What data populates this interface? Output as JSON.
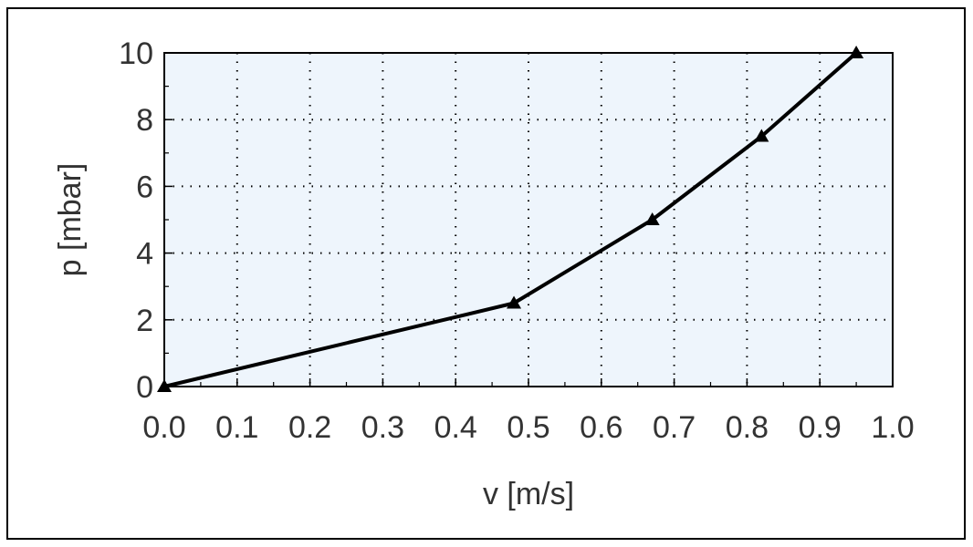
{
  "chart_data": {
    "type": "line",
    "title": "",
    "xlabel": "v [m/s]",
    "ylabel": "p [mbar]",
    "xlim": [
      0.0,
      1.0
    ],
    "ylim": [
      0,
      10
    ],
    "x_ticks": [
      "0.0",
      "0.1",
      "0.2",
      "0.3",
      "0.4",
      "0.5",
      "0.6",
      "0.7",
      "0.8",
      "0.9",
      "1.0"
    ],
    "y_ticks": [
      "0",
      "2",
      "4",
      "6",
      "8",
      "10"
    ],
    "grid": true,
    "legend": "none",
    "series": [
      {
        "x": [
          0.0,
          0.48,
          0.67,
          0.82,
          0.95
        ],
        "y": [
          0.0,
          2.5,
          5.0,
          7.5,
          10.0
        ],
        "marker": "triangle"
      }
    ],
    "colors": {
      "plot_background": "#eef5fc",
      "line": "#000000",
      "grid": "#000000",
      "text": "#333333"
    }
  }
}
